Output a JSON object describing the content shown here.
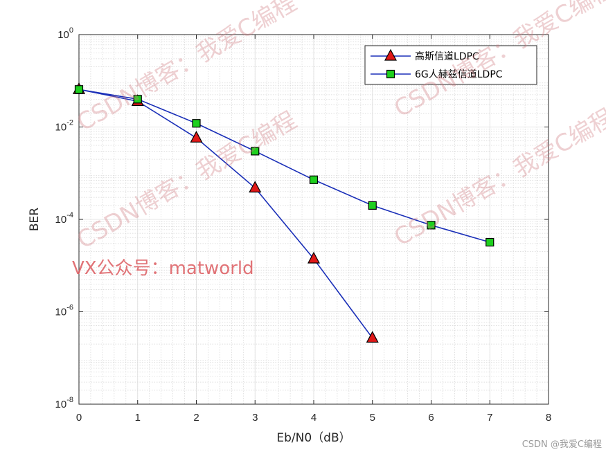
{
  "chart_data": {
    "type": "line",
    "xlabel": "Eb/N0（dB）",
    "ylabel": "BER",
    "xlim": [
      0,
      8
    ],
    "ylim_log10": [
      -8,
      0
    ],
    "yscale": "log",
    "grid": true,
    "legend_position": "top-right",
    "x_ticks": [
      0,
      1,
      2,
      3,
      4,
      5,
      6,
      7,
      8
    ],
    "y_ticks": [
      {
        "base": "10",
        "exp": "0",
        "log": 0
      },
      {
        "base": "10",
        "exp": "-2",
        "log": -2
      },
      {
        "base": "10",
        "exp": "-4",
        "log": -4
      },
      {
        "base": "10",
        "exp": "-6",
        "log": -6
      },
      {
        "base": "10",
        "exp": "-8",
        "log": -8
      }
    ],
    "series": [
      {
        "name": "高斯信道LDPC",
        "marker": "triangle",
        "line_color": "#1a2fb8",
        "marker_color": "#e01818",
        "x": [
          0,
          1,
          2,
          3,
          4,
          5
        ],
        "y": [
          0.065,
          0.036,
          0.0058,
          0.00048,
          1.4e-05,
          2.7e-07
        ]
      },
      {
        "name": "6G人赫兹信道LDPC",
        "marker": "square",
        "line_color": "#1a2fb8",
        "marker_color": "#1ed01e",
        "x": [
          0,
          1,
          2,
          3,
          4,
          5,
          6,
          7
        ],
        "y": [
          0.065,
          0.04,
          0.012,
          0.003,
          0.00072,
          0.0002,
          7.5e-05,
          3.2e-05
        ]
      }
    ]
  },
  "watermarks": {
    "csdn_blog": "CSDN博客：我爱C编程",
    "vx": "VX公众号：matworld"
  },
  "credit": "CSDN @我爱C编程"
}
